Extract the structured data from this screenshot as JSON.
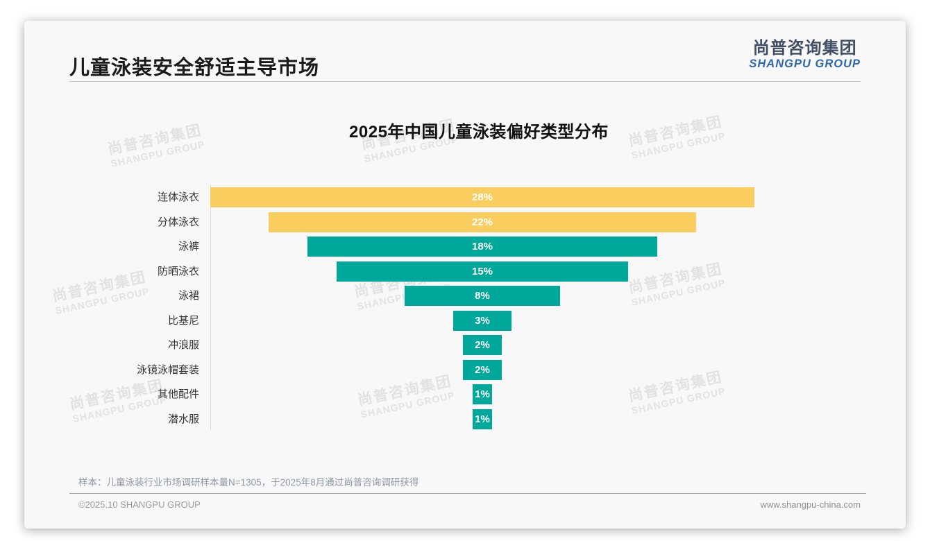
{
  "header": {
    "title": "儿童泳装安全舒适主导市场",
    "logo": {
      "cn": "尚普咨询集团",
      "en": "SHANGPU GROUP"
    }
  },
  "chart_data": {
    "type": "bar",
    "variant": "centered-funnel",
    "title": "2025年中国儿童泳装偏好类型分布",
    "categories": [
      "连体泳衣",
      "分体泳衣",
      "泳裤",
      "防晒泳衣",
      "泳裙",
      "比基尼",
      "冲浪服",
      "泳镜泳帽套装",
      "其他配件",
      "潜水服"
    ],
    "values": [
      28,
      22,
      18,
      15,
      8,
      3,
      2,
      2,
      1,
      1
    ],
    "unit": "%",
    "colors": [
      "#FACD5F",
      "#FACD5F",
      "#00A79B",
      "#00A79B",
      "#00A79B",
      "#00A79B",
      "#00A79B",
      "#00A79B",
      "#00A79B",
      "#00A79B"
    ],
    "accent_colors": {
      "yellow": "#FACD5F",
      "teal": "#00A79B"
    },
    "value_label_style": "inside-center-white",
    "legend": false,
    "grid": false,
    "xlim": [
      0,
      28
    ]
  },
  "watermark": {
    "cn": "尚普咨询集团",
    "en": "SHANGPU GROUP"
  },
  "footer": {
    "sample_note": "样本：儿童泳装行业市场调研样本量N=1305，于2025年8月通过尚普咨询调研获得",
    "copyright": "©2025.10 SHANGPU GROUP",
    "website": "www.shangpu-china.com"
  }
}
